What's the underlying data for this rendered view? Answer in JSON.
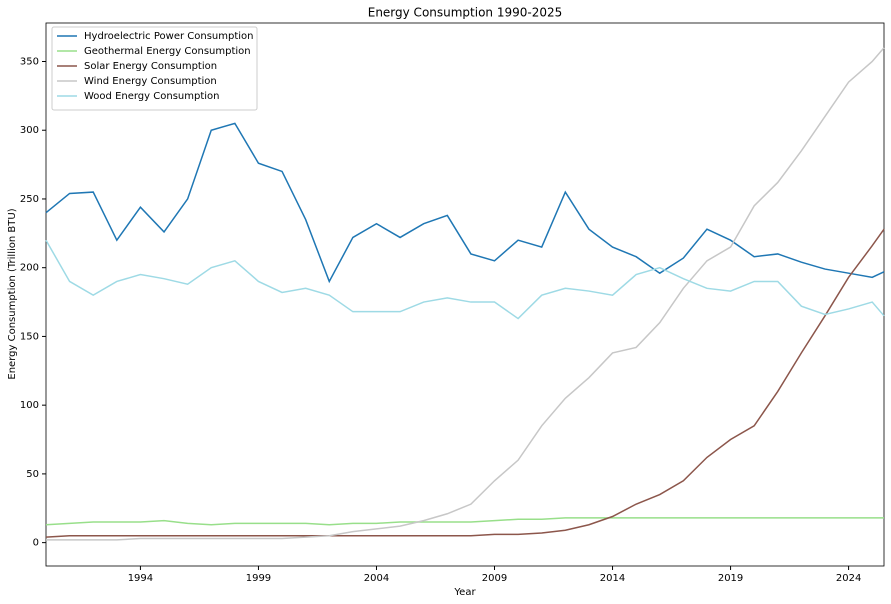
{
  "chart_data": {
    "type": "line",
    "title": "Energy Consumption 1990-2025",
    "x_label": "Year",
    "y_label": "Energy Consumption (Trillion BTU)",
    "x": [
      1990,
      1991,
      1992,
      1993,
      1994,
      1995,
      1996,
      1997,
      1998,
      1999,
      2000,
      2001,
      2002,
      2003,
      2004,
      2005,
      2006,
      2007,
      2008,
      2009,
      2010,
      2011,
      2012,
      2013,
      2014,
      2015,
      2016,
      2017,
      2018,
      2019,
      2020,
      2021,
      2022,
      2023,
      2024,
      2025,
      2025.5
    ],
    "xlim": [
      1990,
      2025.5
    ],
    "xticks": [
      1994,
      1999,
      2004,
      2009,
      2014,
      2019,
      2024
    ],
    "ylim": [
      -17,
      378
    ],
    "yticks": [
      0,
      50,
      100,
      150,
      200,
      250,
      300,
      350
    ],
    "grid": false,
    "legend": "upper left",
    "series": [
      {
        "name": "Hydroelectric Power Consumption",
        "color": "#1f77b4",
        "values": [
          240,
          254,
          255,
          220,
          244,
          226,
          250,
          300,
          305,
          276,
          270,
          235,
          190,
          222,
          232,
          222,
          232,
          238,
          210,
          205,
          220,
          215,
          255,
          228,
          215,
          208,
          196,
          207,
          228,
          220,
          208,
          210,
          204,
          199,
          196,
          193,
          197
        ]
      },
      {
        "name": "Geothermal Energy Consumption",
        "color": "#98df8a",
        "values": [
          13,
          14,
          15,
          15,
          15,
          16,
          14,
          13,
          14,
          14,
          14,
          14,
          13,
          14,
          14,
          15,
          15,
          15,
          15,
          16,
          17,
          17,
          18,
          18,
          18,
          18,
          18,
          18,
          18,
          18,
          18,
          18,
          18,
          18,
          18,
          18,
          18
        ]
      },
      {
        "name": "Solar Energy Consumption",
        "color": "#8c564b",
        "values": [
          4,
          5,
          5,
          5,
          5,
          5,
          5,
          5,
          5,
          5,
          5,
          5,
          5,
          5,
          5,
          5,
          5,
          5,
          5,
          6,
          6,
          7,
          9,
          13,
          19,
          28,
          35,
          45,
          62,
          75,
          85,
          110,
          138,
          165,
          193,
          216,
          228
        ]
      },
      {
        "name": "Wind Energy Consumption",
        "color": "#c7c7c7",
        "values": [
          2,
          2,
          2,
          2,
          3,
          3,
          3,
          3,
          3,
          3,
          3,
          4,
          5,
          8,
          10,
          12,
          16,
          21,
          28,
          45,
          60,
          85,
          105,
          120,
          138,
          142,
          160,
          185,
          205,
          215,
          245,
          262,
          285,
          310,
          335,
          350,
          360
        ]
      },
      {
        "name": "Wood Energy Consumption",
        "color": "#9edae5",
        "values": [
          220,
          190,
          180,
          190,
          195,
          192,
          188,
          200,
          205,
          190,
          182,
          185,
          180,
          168,
          168,
          168,
          175,
          178,
          175,
          175,
          163,
          180,
          185,
          183,
          180,
          195,
          200,
          192,
          185,
          183,
          190,
          190,
          172,
          166,
          170,
          175,
          165
        ]
      }
    ]
  }
}
